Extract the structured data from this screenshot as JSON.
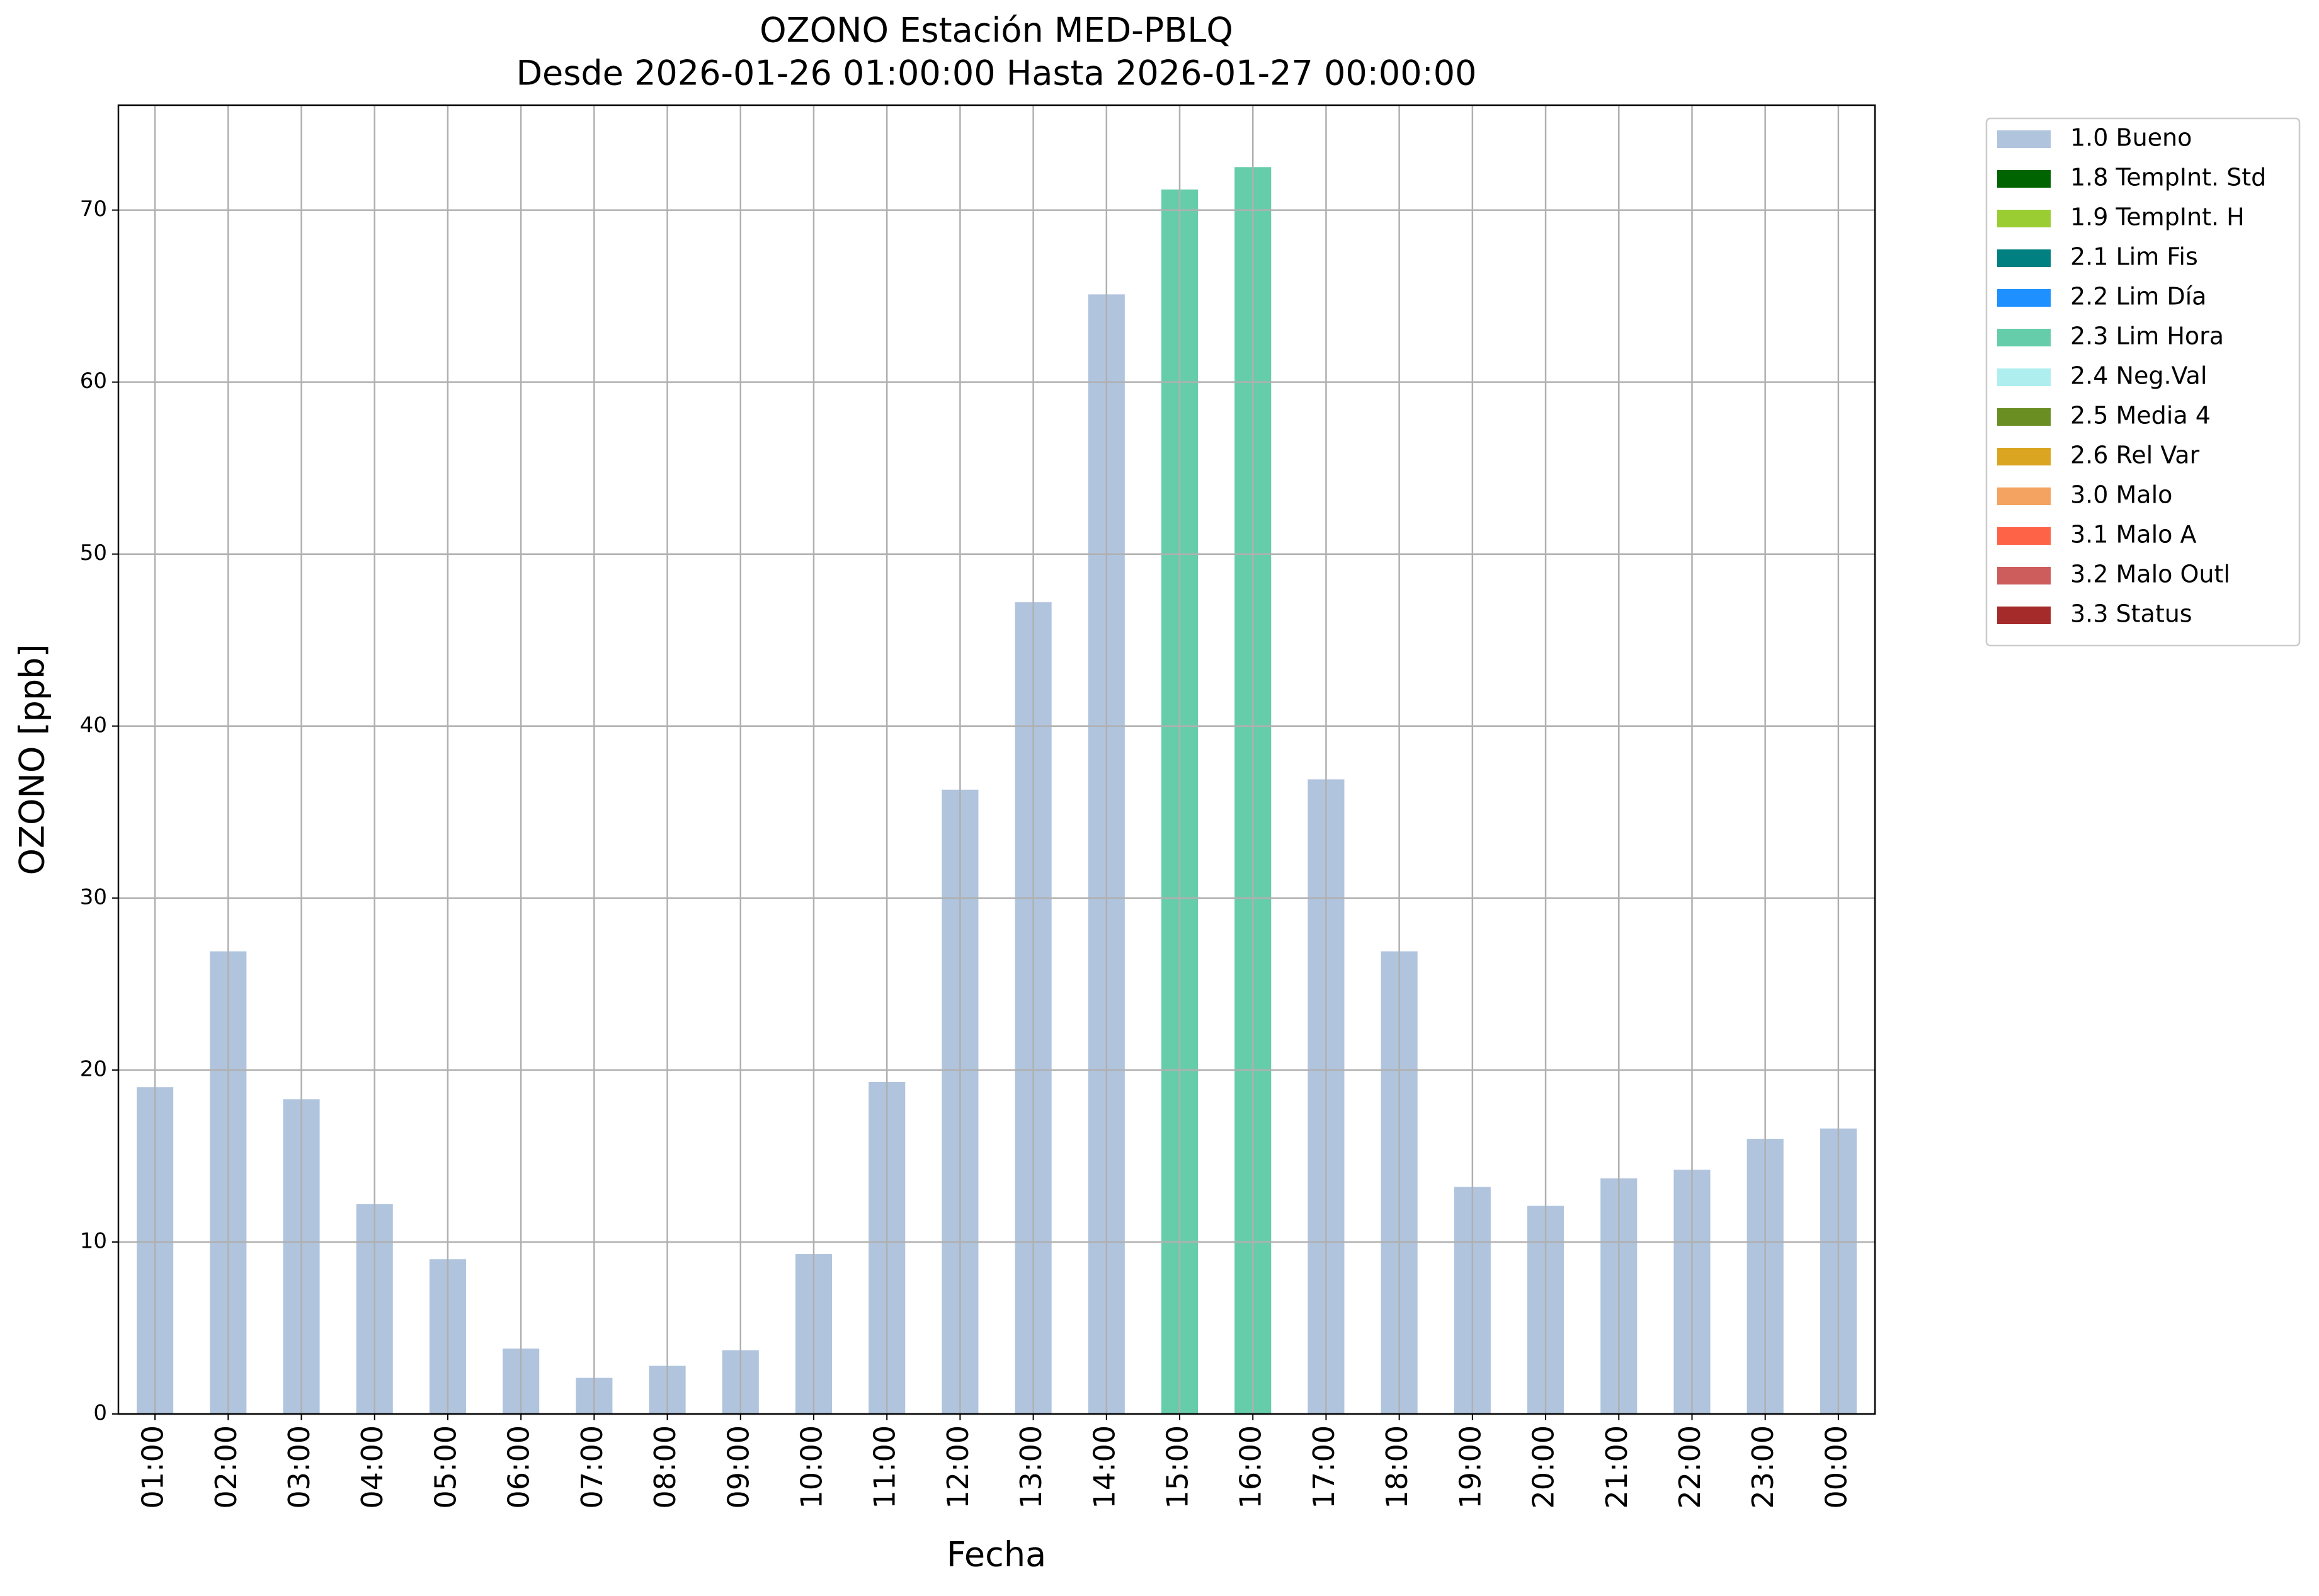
{
  "chart_data": {
    "type": "stacked_bar",
    "title": "OZONO Estación MED-PBLQ",
    "subtitle": "Desde 2026-01-26 01:00:00 Hasta 2026-01-27 00:00:00",
    "x_label": "Fecha",
    "y_label": "OZONO [ppb]",
    "categories": [
      "01:00",
      "02:00",
      "03:00",
      "04:00",
      "05:00",
      "06:00",
      "07:00",
      "08:00",
      "09:00",
      "10:00",
      "11:00",
      "12:00",
      "13:00",
      "14:00",
      "15:00",
      "16:00",
      "17:00",
      "18:00",
      "19:00",
      "20:00",
      "21:00",
      "22:00",
      "23:00",
      "00:00"
    ],
    "series": [
      {
        "name": "1.0 Bueno",
        "color": "#b0c4de",
        "values": [
          19.0,
          26.9,
          18.3,
          12.2,
          9.0,
          3.8,
          2.1,
          2.8,
          3.7,
          9.3,
          19.3,
          36.3,
          47.2,
          65.1,
          null,
          null,
          36.9,
          26.9,
          13.2,
          12.1,
          13.7,
          14.2,
          16.0,
          16.6
        ]
      },
      {
        "name": "1.8 TempInt. Std",
        "color": "#006400",
        "values": [
          null,
          null,
          null,
          null,
          null,
          null,
          null,
          null,
          null,
          null,
          null,
          null,
          null,
          null,
          null,
          null,
          null,
          null,
          null,
          null,
          null,
          null,
          null,
          null
        ]
      },
      {
        "name": "1.9 TempInt. H",
        "color": "#9acd32",
        "values": [
          null,
          null,
          null,
          null,
          null,
          null,
          null,
          null,
          null,
          null,
          null,
          null,
          null,
          null,
          null,
          null,
          null,
          null,
          null,
          null,
          null,
          null,
          null,
          null
        ]
      },
      {
        "name": "2.1 Lim Fis",
        "color": "#008080",
        "values": [
          null,
          null,
          null,
          null,
          null,
          null,
          null,
          null,
          null,
          null,
          null,
          null,
          null,
          null,
          null,
          null,
          null,
          null,
          null,
          null,
          null,
          null,
          null,
          null
        ]
      },
      {
        "name": "2.2 Lim Día",
        "color": "#1e90ff",
        "values": [
          null,
          null,
          null,
          null,
          null,
          null,
          null,
          null,
          null,
          null,
          null,
          null,
          null,
          null,
          null,
          null,
          null,
          null,
          null,
          null,
          null,
          null,
          null,
          null
        ]
      },
      {
        "name": "2.3 Lim Hora",
        "color": "#66cdaa",
        "values": [
          null,
          null,
          null,
          null,
          null,
          null,
          null,
          null,
          null,
          null,
          null,
          null,
          null,
          null,
          71.2,
          72.5,
          null,
          null,
          null,
          null,
          null,
          null,
          null,
          null
        ]
      },
      {
        "name": "2.4 Neg.Val",
        "color": "#afeeee",
        "values": [
          null,
          null,
          null,
          null,
          null,
          null,
          null,
          null,
          null,
          null,
          null,
          null,
          null,
          null,
          null,
          null,
          null,
          null,
          null,
          null,
          null,
          null,
          null,
          null
        ]
      },
      {
        "name": "2.5 Media 4",
        "color": "#6b8e23",
        "values": [
          null,
          null,
          null,
          null,
          null,
          null,
          null,
          null,
          null,
          null,
          null,
          null,
          null,
          null,
          null,
          null,
          null,
          null,
          null,
          null,
          null,
          null,
          null,
          null
        ]
      },
      {
        "name": "2.6 Rel Var",
        "color": "#daa520",
        "values": [
          null,
          null,
          null,
          null,
          null,
          null,
          null,
          null,
          null,
          null,
          null,
          null,
          null,
          null,
          null,
          null,
          null,
          null,
          null,
          null,
          null,
          null,
          null,
          null
        ]
      },
      {
        "name": "3.0 Malo",
        "color": "#f4a460",
        "values": [
          null,
          null,
          null,
          null,
          null,
          null,
          null,
          null,
          null,
          null,
          null,
          null,
          null,
          null,
          null,
          null,
          null,
          null,
          null,
          null,
          null,
          null,
          null,
          null
        ]
      },
      {
        "name": "3.1 Malo A",
        "color": "#ff6347",
        "values": [
          null,
          null,
          null,
          null,
          null,
          null,
          null,
          null,
          null,
          null,
          null,
          null,
          null,
          null,
          null,
          null,
          null,
          null,
          null,
          null,
          null,
          null,
          null,
          null
        ]
      },
      {
        "name": "3.2 Malo Outl",
        "color": "#cd5c5c",
        "values": [
          null,
          null,
          null,
          null,
          null,
          null,
          null,
          null,
          null,
          null,
          null,
          null,
          null,
          null,
          null,
          null,
          null,
          null,
          null,
          null,
          null,
          null,
          null,
          null
        ]
      },
      {
        "name": "3.3 Status",
        "color": "#a52a2a",
        "values": [
          null,
          null,
          null,
          null,
          null,
          null,
          null,
          null,
          null,
          null,
          null,
          null,
          null,
          null,
          null,
          null,
          null,
          null,
          null,
          null,
          null,
          null,
          null,
          null
        ]
      }
    ],
    "ylim": [
      0,
      76.1
    ],
    "yticks": [
      0,
      10,
      20,
      30,
      40,
      50,
      60,
      70
    ],
    "grid": true,
    "legend": "outside-upper-right"
  }
}
